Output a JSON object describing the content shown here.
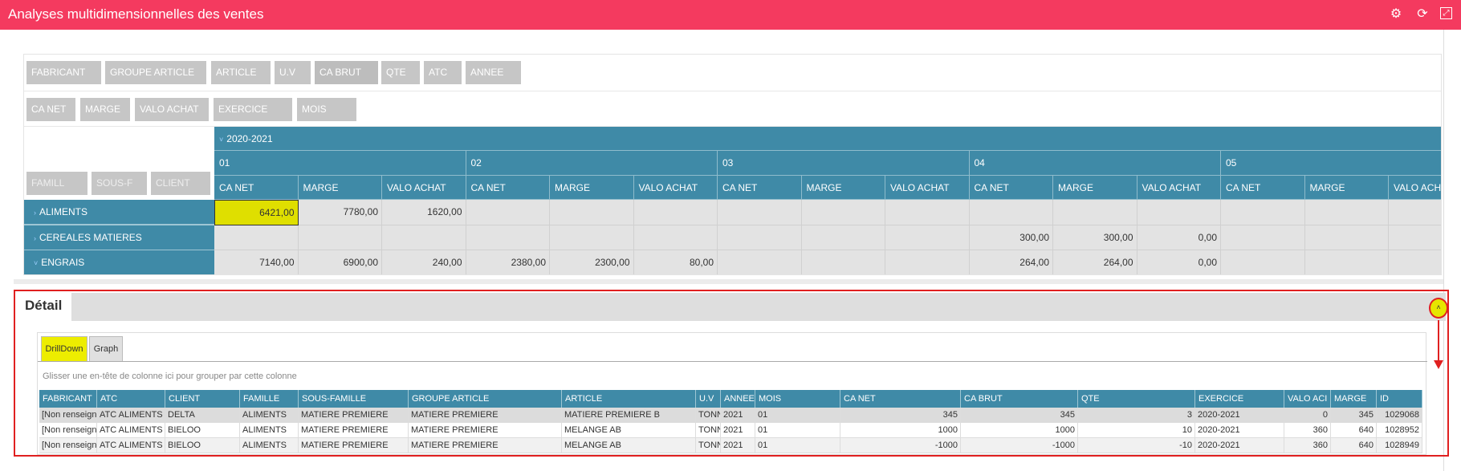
{
  "header": {
    "title": "Analyses multidimensionnelles des ventes",
    "icons": [
      "settings-icon",
      "refresh-icon",
      "fullscreen-icon"
    ]
  },
  "colors": {
    "header": "#f43a5f",
    "teal": "#3f8aa7",
    "highlight": "#dfdf00",
    "annotation": "#e02020"
  },
  "pivot": {
    "filter_fields": [
      "FABRICANT",
      "GROUPE ARTICLE",
      "ARTICLE",
      "U.V",
      "CA BRUT",
      "QTE",
      "ATC",
      "ANNEE"
    ],
    "data_fields": [
      "CA NET",
      "MARGE",
      "VALO ACHAT",
      "EXERCICE",
      "MOIS"
    ],
    "row_fields": [
      "FAMILL",
      "SOUS-F",
      "CLIENT"
    ],
    "column_year": "2020-2021",
    "months": [
      "01",
      "02",
      "03",
      "04",
      "05"
    ],
    "measures": [
      "CA NET",
      "MARGE",
      "VALO ACHAT"
    ],
    "rows": [
      {
        "label": "ALIMENTS",
        "expanded": false,
        "values": [
          "6421,00",
          "7780,00",
          "1620,00",
          "",
          "",
          "",
          "",
          "",
          "",
          "",
          "",
          "",
          "",
          "",
          ""
        ]
      },
      {
        "label": "CEREALES MATIERES",
        "expanded": false,
        "values": [
          "",
          "",
          "",
          "",
          "",
          "",
          "",
          "",
          "",
          "300,00",
          "300,00",
          "0,00",
          "",
          "",
          ""
        ]
      },
      {
        "label": "ENGRAIS",
        "expanded": true,
        "values": [
          "7140,00",
          "6900,00",
          "240,00",
          "2380,00",
          "2300,00",
          "80,00",
          "",
          "",
          "",
          "264,00",
          "264,00",
          "0,00",
          "",
          "",
          ""
        ]
      }
    ]
  },
  "detail": {
    "title": "Détail",
    "tabs": [
      "DrillDown",
      "Graph"
    ],
    "active_tab": "DrillDown",
    "group_hint": "Glisser une en-tête de colonne ici pour grouper par cette colonne",
    "columns": [
      "FABRICANT",
      "ATC",
      "CLIENT",
      "FAMILLE",
      "SOUS-FAMILLE",
      "GROUPE ARTICLE",
      "ARTICLE",
      "U.V",
      "ANNEE",
      "MOIS",
      "CA NET",
      "CA BRUT",
      "QTE",
      "EXERCICE",
      "VALO ACI",
      "MARGE",
      "ID"
    ],
    "rows": [
      [
        "[Non renseigné]",
        "ATC ALIMENTS",
        "DELTA",
        "ALIMENTS",
        "MATIERE PREMIERE",
        "MATIERE PREMIERE",
        "MATIERE PREMIERE B",
        "TONN",
        "2021",
        "01",
        "345",
        "345",
        "3",
        "2020-2021",
        "0",
        "345",
        "1029068"
      ],
      [
        "[Non renseigné]",
        "ATC ALIMENTS",
        "BIELOO",
        "ALIMENTS",
        "MATIERE PREMIERE",
        "MATIERE PREMIERE",
        "MELANGE AB",
        "TONN",
        "2021",
        "01",
        "1000",
        "1000",
        "10",
        "2020-2021",
        "360",
        "640",
        "1028952"
      ],
      [
        "[Non renseigné]",
        "ATC ALIMENTS",
        "BIELOO",
        "ALIMENTS",
        "MATIERE PREMIERE",
        "MATIERE PREMIERE",
        "MELANGE AB",
        "TONN",
        "2021",
        "01",
        "-1000",
        "-1000",
        "-10",
        "2020-2021",
        "360",
        "640",
        "1028949"
      ]
    ]
  }
}
